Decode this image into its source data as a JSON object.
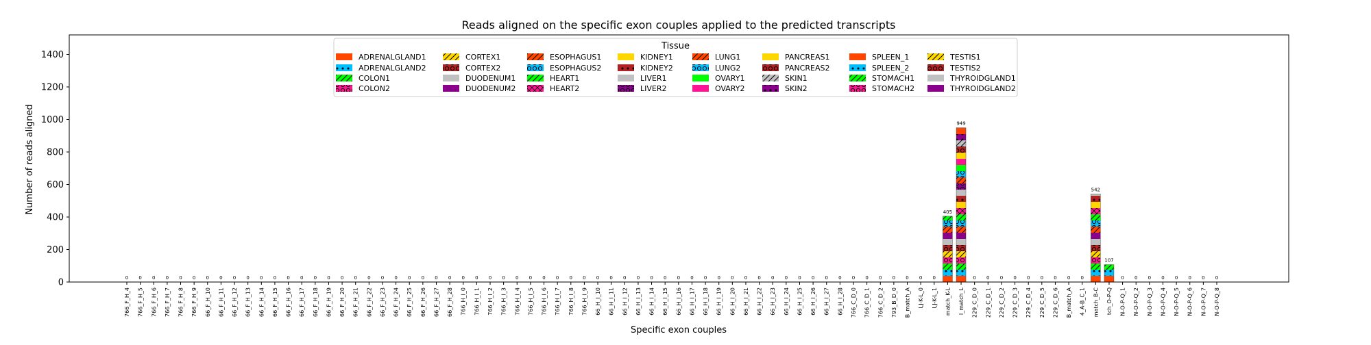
{
  "chart_data": {
    "type": "bar",
    "stacked": true,
    "title": "Reads aligned on the specific exon couples applied to the predicted transcripts",
    "xlabel": "Specific exon couples",
    "ylabel": "Number of reads aligned",
    "ylim": [
      0,
      1520
    ],
    "yticks": [
      0,
      200,
      400,
      600,
      800,
      1000,
      1200,
      1400
    ],
    "grid": false,
    "legend_title": "Tissue",
    "legend_position": "top-center",
    "categories": [
      "766_F_H_4",
      "766_F_H_5",
      "766_F_H_6",
      "766_F_H_7",
      "766_F_H_8",
      "766_F_H_9",
      "66_F_H_10",
      "66_F_H_11",
      "66_F_H_12",
      "66_F_H_13",
      "66_F_H_14",
      "66_F_H_15",
      "66_F_H_16",
      "66_F_H_17",
      "66_F_H_18",
      "66_F_H_19",
      "66_F_H_20",
      "66_F_H_21",
      "66_F_H_22",
      "66_F_H_23",
      "66_F_H_24",
      "66_F_H_25",
      "66_F_H_26",
      "66_F_H_27",
      "66_F_H_28",
      "766_H_I_0",
      "766_H_I_1",
      "766_H_I_2",
      "766_H_I_3",
      "766_H_I_4",
      "766_H_I_5",
      "766_H_I_6",
      "766_H_I_7",
      "766_H_I_8",
      "766_H_I_9",
      "66_H_I_10",
      "66_H_I_11",
      "66_H_I_12",
      "66_H_I_13",
      "66_H_I_14",
      "66_H_I_15",
      "66_H_I_16",
      "66_H_I_17",
      "66_H_I_18",
      "66_H_I_19",
      "66_H_I_20",
      "66_H_I_21",
      "66_H_I_22",
      "66_H_I_23",
      "66_H_I_24",
      "66_H_I_25",
      "66_H_I_26",
      "66_H_I_27",
      "66_H_I_28",
      "766_C_D_0",
      "766_C_D_1",
      "766_C_D_2",
      "793_B_D_0",
      "B_match_A",
      "I,J-K-L_0",
      "I,J-K-L_1",
      "match_K-L",
      "I_match_L",
      "229_C_D_0",
      "229_C_D_1",
      "229_C_D_2",
      "229_C_D_3",
      "229_C_D_4",
      "229_C_D_5",
      "229_C_D_6",
      "B_match_A",
      "4_A-B_C_1",
      "match_B-C",
      "tch_O-P-Q",
      "N-O-P-Q_1",
      "N-O-P-Q_2",
      "N-O-P-Q_3",
      "N-O-P-Q_4",
      "N-O-P-Q_5",
      "N-O-P-Q_6",
      "N-O-P-Q_7",
      "N-O-P-Q_8"
    ],
    "totals": [
      0,
      0,
      0,
      0,
      0,
      0,
      0,
      0,
      0,
      0,
      0,
      0,
      0,
      0,
      0,
      0,
      0,
      0,
      0,
      0,
      0,
      0,
      0,
      0,
      0,
      0,
      0,
      0,
      0,
      0,
      0,
      0,
      0,
      0,
      0,
      0,
      0,
      0,
      0,
      0,
      0,
      0,
      0,
      0,
      0,
      0,
      0,
      0,
      0,
      0,
      0,
      0,
      0,
      0,
      0,
      0,
      0,
      0,
      0,
      0,
      0,
      405,
      949,
      0,
      0,
      0,
      0,
      0,
      0,
      0,
      0,
      0,
      542,
      107,
      0,
      0,
      0,
      0,
      0,
      0,
      0,
      0
    ],
    "total_labels": [
      "0",
      "0",
      "0",
      "0",
      "0",
      "0",
      "0",
      "0",
      "0",
      "0",
      "0",
      "0",
      "0",
      "0",
      "0",
      "0",
      "0",
      "0",
      "0",
      "0",
      "0",
      "0",
      "0",
      "0",
      "0",
      "0",
      "0",
      "0",
      "0",
      "0",
      "0",
      "0",
      "0",
      "0",
      "0",
      "0",
      "0",
      "0",
      "0",
      "0",
      "0",
      "0",
      "0",
      "0",
      "0",
      "0",
      "0",
      "0",
      "0",
      "0",
      "0",
      "0",
      "0",
      "0",
      "0",
      "0",
      "0",
      "0",
      "0",
      "0",
      "0",
      "405",
      "949",
      "0",
      "0",
      "0",
      "0",
      "0",
      "0",
      "0",
      "0",
      "0",
      "542",
      "107",
      "0",
      "0",
      "0",
      "0",
      "0",
      "0",
      "0",
      "0"
    ],
    "series": [
      {
        "name": "ADRENALGLAND1",
        "color": "#ff4500",
        "hatch": "none"
      },
      {
        "name": "ADRENALGLAND2",
        "color": "#00bfff",
        "hatch": "dot"
      },
      {
        "name": "COLON1",
        "color": "#00ff00",
        "hatch": "slash"
      },
      {
        "name": "COLON2",
        "color": "#ff1493",
        "hatch": "circle"
      },
      {
        "name": "CORTEX1",
        "color": "#ffd700",
        "hatch": "slash"
      },
      {
        "name": "CORTEX2",
        "color": "#b22222",
        "hatch": "circle"
      },
      {
        "name": "DUODENUM1",
        "color": "#c0c0c0",
        "hatch": "none"
      },
      {
        "name": "DUODENUM2",
        "color": "#8b008b",
        "hatch": "none"
      },
      {
        "name": "ESOPHAGUS1",
        "color": "#ff4500",
        "hatch": "slash"
      },
      {
        "name": "ESOPHAGUS2",
        "color": "#00bfff",
        "hatch": "circle"
      },
      {
        "name": "HEART1",
        "color": "#00ff00",
        "hatch": "slash"
      },
      {
        "name": "HEART2",
        "color": "#ff1493",
        "hatch": "x"
      },
      {
        "name": "KIDNEY1",
        "color": "#ffd700",
        "hatch": "none"
      },
      {
        "name": "KIDNEY2",
        "color": "#b22222",
        "hatch": "dot"
      },
      {
        "name": "LIVER1",
        "color": "#c0c0c0",
        "hatch": "none"
      },
      {
        "name": "LIVER2",
        "color": "#8b008b",
        "hatch": "circle"
      },
      {
        "name": "LUNG1",
        "color": "#ff4500",
        "hatch": "slash"
      },
      {
        "name": "LUNG2",
        "color": "#00bfff",
        "hatch": "circle"
      },
      {
        "name": "OVARY1",
        "color": "#00ff00",
        "hatch": "none"
      },
      {
        "name": "OVARY2",
        "color": "#ff1493",
        "hatch": "none"
      },
      {
        "name": "PANCREAS1",
        "color": "#ffd700",
        "hatch": "none"
      },
      {
        "name": "PANCREAS2",
        "color": "#b22222",
        "hatch": "circle"
      },
      {
        "name": "SKIN1",
        "color": "#c0c0c0",
        "hatch": "slash"
      },
      {
        "name": "SKIN2",
        "color": "#8b008b",
        "hatch": "dot"
      },
      {
        "name": "SPLEEN_1",
        "color": "#ff4500",
        "hatch": "none"
      },
      {
        "name": "SPLEEN_2",
        "color": "#00bfff",
        "hatch": "dot"
      },
      {
        "name": "STOMACH1",
        "color": "#00ff00",
        "hatch": "slash"
      },
      {
        "name": "STOMACH2",
        "color": "#ff1493",
        "hatch": "circle"
      },
      {
        "name": "TESTIS1",
        "color": "#ffd700",
        "hatch": "slash"
      },
      {
        "name": "TESTIS2",
        "color": "#b22222",
        "hatch": "circle"
      },
      {
        "name": "THYROIDGLAND1",
        "color": "#c0c0c0",
        "hatch": "none"
      },
      {
        "name": "THYROIDGLAND2",
        "color": "#8b008b",
        "hatch": "none"
      }
    ]
  }
}
